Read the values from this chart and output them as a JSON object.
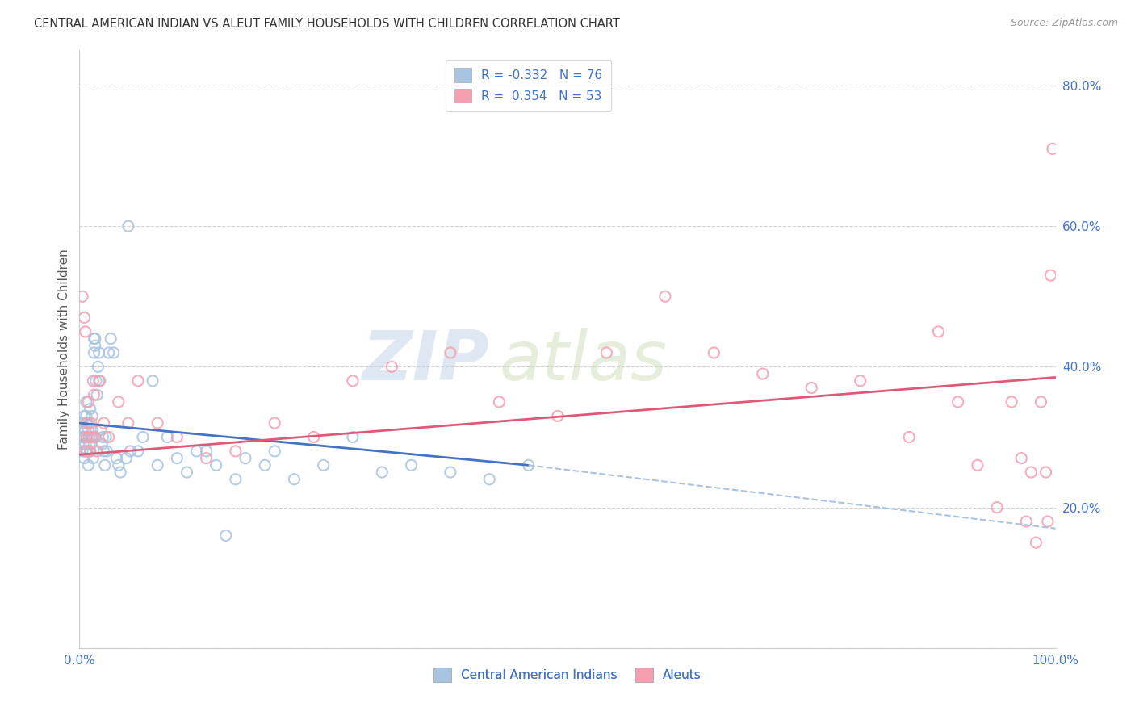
{
  "title": "CENTRAL AMERICAN INDIAN VS ALEUT FAMILY HOUSEHOLDS WITH CHILDREN CORRELATION CHART",
  "source": "Source: ZipAtlas.com",
  "ylabel": "Family Households with Children",
  "xlim": [
    0.0,
    1.0
  ],
  "ylim": [
    0.0,
    0.85
  ],
  "x_ticks": [
    0.0,
    0.2,
    0.4,
    0.6,
    0.8,
    1.0
  ],
  "x_tick_labels": [
    "0.0%",
    "",
    "",
    "",
    "",
    "100.0%"
  ],
  "y_ticks": [
    0.0,
    0.2,
    0.4,
    0.6,
    0.8
  ],
  "y_tick_labels": [
    "",
    "20.0%",
    "40.0%",
    "60.0%",
    "80.0%"
  ],
  "legend_labels": [
    "Central American Indians",
    "Aleuts"
  ],
  "r_blue": -0.332,
  "n_blue": 76,
  "r_pink": 0.354,
  "n_pink": 53,
  "color_blue": "#a8c4e0",
  "color_pink": "#f4a0b0",
  "line_blue_solid": "#4472c4",
  "line_blue_dashed": "#aac4e0",
  "line_pink": "#e05878",
  "watermark_zip": "ZIP",
  "watermark_atlas": "atlas",
  "background_color": "#ffffff",
  "grid_color": "#cccccc",
  "title_color": "#333333",
  "tick_color": "#4472c4",
  "ylabel_color": "#555555",
  "source_color": "#999999",
  "blue_x": [
    0.002,
    0.003,
    0.003,
    0.004,
    0.004,
    0.005,
    0.005,
    0.005,
    0.006,
    0.006,
    0.006,
    0.007,
    0.007,
    0.007,
    0.008,
    0.008,
    0.009,
    0.009,
    0.01,
    0.01,
    0.011,
    0.011,
    0.012,
    0.012,
    0.013,
    0.013,
    0.014,
    0.014,
    0.015,
    0.015,
    0.016,
    0.016,
    0.017,
    0.018,
    0.019,
    0.02,
    0.021,
    0.022,
    0.023,
    0.024,
    0.025,
    0.026,
    0.027,
    0.028,
    0.03,
    0.032,
    0.035,
    0.038,
    0.042,
    0.048,
    0.052,
    0.04,
    0.06,
    0.065,
    0.08,
    0.1,
    0.11,
    0.13,
    0.15,
    0.17,
    0.19,
    0.22,
    0.25,
    0.28,
    0.31,
    0.34,
    0.38,
    0.42,
    0.46,
    0.05,
    0.075,
    0.09,
    0.12,
    0.14,
    0.16,
    0.2
  ],
  "blue_y": [
    0.3,
    0.32,
    0.28,
    0.31,
    0.29,
    0.33,
    0.27,
    0.3,
    0.28,
    0.31,
    0.29,
    0.32,
    0.35,
    0.33,
    0.3,
    0.28,
    0.26,
    0.31,
    0.29,
    0.32,
    0.34,
    0.28,
    0.3,
    0.29,
    0.31,
    0.33,
    0.27,
    0.3,
    0.42,
    0.44,
    0.44,
    0.43,
    0.38,
    0.36,
    0.4,
    0.42,
    0.38,
    0.31,
    0.29,
    0.3,
    0.28,
    0.26,
    0.3,
    0.28,
    0.42,
    0.44,
    0.42,
    0.27,
    0.25,
    0.27,
    0.28,
    0.26,
    0.28,
    0.3,
    0.26,
    0.27,
    0.25,
    0.28,
    0.16,
    0.27,
    0.26,
    0.24,
    0.26,
    0.3,
    0.25,
    0.26,
    0.25,
    0.24,
    0.26,
    0.6,
    0.38,
    0.3,
    0.28,
    0.26,
    0.24,
    0.28
  ],
  "pink_x": [
    0.003,
    0.005,
    0.006,
    0.007,
    0.007,
    0.008,
    0.009,
    0.01,
    0.011,
    0.012,
    0.013,
    0.014,
    0.015,
    0.016,
    0.018,
    0.02,
    0.025,
    0.03,
    0.04,
    0.05,
    0.06,
    0.08,
    0.1,
    0.13,
    0.16,
    0.2,
    0.24,
    0.28,
    0.32,
    0.38,
    0.43,
    0.49,
    0.54,
    0.6,
    0.65,
    0.7,
    0.75,
    0.8,
    0.85,
    0.88,
    0.9,
    0.92,
    0.94,
    0.955,
    0.965,
    0.97,
    0.975,
    0.98,
    0.985,
    0.99,
    0.992,
    0.995,
    0.997
  ],
  "pink_y": [
    0.5,
    0.47,
    0.45,
    0.3,
    0.28,
    0.32,
    0.35,
    0.3,
    0.28,
    0.32,
    0.3,
    0.38,
    0.36,
    0.3,
    0.28,
    0.38,
    0.32,
    0.3,
    0.35,
    0.32,
    0.38,
    0.32,
    0.3,
    0.27,
    0.28,
    0.32,
    0.3,
    0.38,
    0.4,
    0.42,
    0.35,
    0.33,
    0.42,
    0.5,
    0.42,
    0.39,
    0.37,
    0.38,
    0.3,
    0.45,
    0.35,
    0.26,
    0.2,
    0.35,
    0.27,
    0.18,
    0.25,
    0.15,
    0.35,
    0.25,
    0.18,
    0.53,
    0.71
  ],
  "blue_line_x0": 0.0,
  "blue_line_y0": 0.32,
  "blue_line_x1": 0.46,
  "blue_line_y1": 0.26,
  "blue_line_x2": 1.0,
  "blue_line_y2": 0.17,
  "pink_line_x0": 0.0,
  "pink_line_y0": 0.275,
  "pink_line_x1": 1.0,
  "pink_line_y1": 0.385
}
